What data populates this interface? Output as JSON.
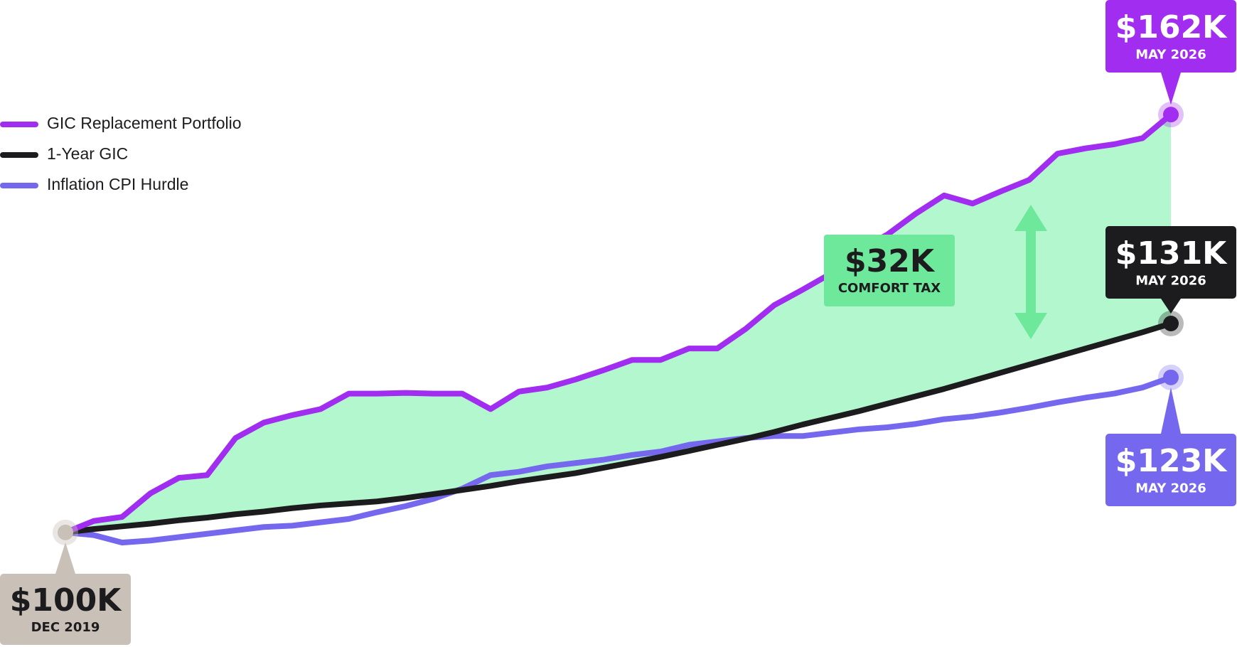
{
  "chart_data": {
    "type": "line",
    "categories": [
      "DEC 2019",
      null,
      null,
      null,
      null,
      null,
      null,
      null,
      null,
      null,
      null,
      null,
      null,
      null,
      null,
      null,
      null,
      null,
      null,
      null,
      null,
      null,
      null,
      null,
      null,
      null,
      null,
      null,
      null,
      null,
      null,
      null,
      null,
      null,
      null,
      null,
      null,
      null,
      null,
      "MAY 2026"
    ],
    "ylim": [
      83,
      179
    ],
    "fill_between": [
      "GIC Replacement Portfolio",
      "1-Year GIC"
    ],
    "fill_color": "#b3f7cf",
    "legend": "top-left",
    "series": [
      {
        "name": "GIC Replacement Portfolio",
        "color": "#a12df0",
        "values": [
          100,
          101.7,
          102.3,
          105.8,
          108.1,
          108.5,
          114,
          116.3,
          117.4,
          118.3,
          120.6,
          120.6,
          120.7,
          120.6,
          120.6,
          118.3,
          120.9,
          121.5,
          122.7,
          124.1,
          125.6,
          125.6,
          127.3,
          127.3,
          130.2,
          133.7,
          136,
          138.4,
          141.9,
          144.2,
          147.3,
          150,
          148.8,
          150.6,
          152.3,
          156.2,
          157,
          157.6,
          158.5,
          162
        ],
        "value_labels": [
          "$100K",
          null,
          null,
          null,
          null,
          null,
          null,
          null,
          null,
          null,
          null,
          null,
          null,
          null,
          null,
          null,
          null,
          null,
          null,
          null,
          null,
          null,
          null,
          null,
          null,
          null,
          null,
          null,
          null,
          null,
          null,
          null,
          null,
          null,
          null,
          null,
          null,
          null,
          null,
          "$162K"
        ]
      },
      {
        "name": "1-Year GIC",
        "color": "#1c1c1e",
        "values": [
          100,
          100.5,
          100.9,
          101.3,
          101.8,
          102.2,
          102.7,
          103.1,
          103.6,
          104,
          104.3,
          104.6,
          105.1,
          105.7,
          106.3,
          106.9,
          107.6,
          108.2,
          108.8,
          109.6,
          110.4,
          111.2,
          112.1,
          113,
          113.9,
          114.9,
          116,
          117,
          118,
          119.1,
          120.2,
          121.3,
          122.5,
          123.7,
          124.9,
          126.1,
          127.3,
          128.5,
          129.7,
          131
        ],
        "value_labels": [
          null,
          null,
          null,
          null,
          null,
          null,
          null,
          null,
          null,
          null,
          null,
          null,
          null,
          null,
          null,
          null,
          null,
          null,
          null,
          null,
          null,
          null,
          null,
          null,
          null,
          null,
          null,
          null,
          null,
          null,
          null,
          null,
          null,
          null,
          null,
          null,
          null,
          null,
          null,
          "$131K"
        ]
      },
      {
        "name": "Inflation CPI Hurdle",
        "color": "#7568ee",
        "values": [
          100,
          99.6,
          98.5,
          98.8,
          99.3,
          99.8,
          100.3,
          100.8,
          101,
          101.5,
          102,
          103,
          103.9,
          105,
          106.5,
          108.5,
          109,
          109.8,
          110.3,
          110.8,
          111.5,
          112,
          113,
          113.5,
          114,
          114.3,
          114.3,
          114.8,
          115.3,
          115.6,
          116.1,
          116.8,
          117.2,
          117.8,
          118.5,
          119.3,
          120,
          120.6,
          121.5,
          123
        ],
        "value_labels": [
          null,
          null,
          null,
          null,
          null,
          null,
          null,
          null,
          null,
          null,
          null,
          null,
          null,
          null,
          null,
          null,
          null,
          null,
          null,
          null,
          null,
          null,
          null,
          null,
          null,
          null,
          null,
          null,
          null,
          null,
          null,
          null,
          null,
          null,
          null,
          null,
          null,
          null,
          null,
          "$123K"
        ]
      }
    ],
    "annotations": [
      {
        "label": "$32K",
        "text": "COMFORT TAX",
        "color": "#6ee89a"
      }
    ],
    "start_color": "#c9c1b8"
  }
}
